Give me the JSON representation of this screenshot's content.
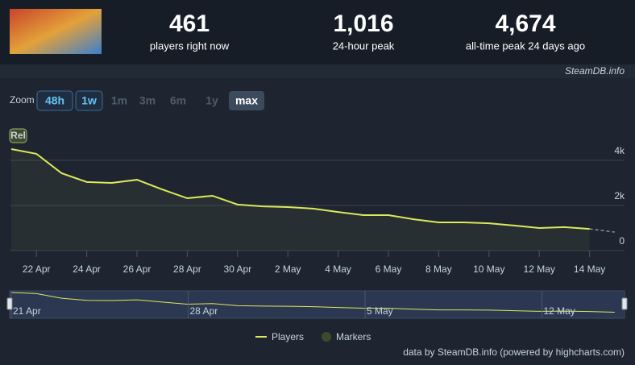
{
  "header": {
    "stats": [
      {
        "value": "461",
        "label": "players right now"
      },
      {
        "value": "1,016",
        "label": "24-hour peak"
      },
      {
        "value": "4,674",
        "label": "all-time peak 24 days ago"
      }
    ],
    "source": "SteamDB.info"
  },
  "zoom": {
    "label": "Zoom",
    "buttons": [
      "48h",
      "1w",
      "1m",
      "3m",
      "6m",
      "1y",
      "max"
    ]
  },
  "credit": "data by SteamDB.info (powered by highcharts.com)",
  "chart_data": {
    "type": "line",
    "categories": [
      null,
      "22 Apr",
      null,
      "24 Apr",
      null,
      "26 Apr",
      null,
      "28 Apr",
      null,
      "30 Apr",
      null,
      "2 May",
      null,
      "4 May",
      null,
      "6 May",
      null,
      "8 May",
      null,
      "10 May",
      null,
      "12 May",
      null,
      "14 May",
      null
    ],
    "series": [
      {
        "name": "Players",
        "color": "#dde85a",
        "values": [
          4500,
          4290,
          3430,
          3040,
          3000,
          3140,
          2710,
          2320,
          2430,
          2040,
          1960,
          1930,
          1860,
          1710,
          1570,
          1570,
          1390,
          1250,
          1250,
          1210,
          1110,
          1000,
          1040,
          960,
          820
        ]
      }
    ],
    "markers": {
      "name": "Markers",
      "color": "#3d4a2c",
      "labels": [
        "Rel"
      ]
    },
    "dashed_last": true,
    "ylim": [
      0,
      5750
    ],
    "yticks": [
      0,
      {
        "value": 2000,
        "label": "2k"
      },
      {
        "value": 4000,
        "label": "4k"
      }
    ],
    "grid": true,
    "navigator": {
      "labels": [
        "21 Apr",
        "28 Apr",
        "5 May",
        "12 May"
      ]
    }
  }
}
